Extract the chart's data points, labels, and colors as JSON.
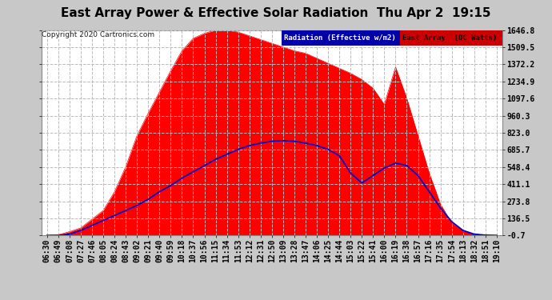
{
  "title": "East Array Power & Effective Solar Radiation  Thu Apr 2  19:15",
  "copyright": "Copyright 2020 Cartronics.com",
  "legend_radiation": "Radiation (Effective w/m2)",
  "legend_array": "East Array  (DC Watts)",
  "background_color": "#c8c8c8",
  "plot_bg_color": "#ffffff",
  "ylim": [
    -0.7,
    1646.8
  ],
  "yticks": [
    -0.7,
    136.5,
    273.8,
    411.1,
    548.4,
    685.7,
    823.0,
    960.3,
    1097.6,
    1234.9,
    1372.2,
    1509.5,
    1646.8
  ],
  "xtick_labels": [
    "06:30",
    "06:49",
    "07:08",
    "07:27",
    "07:46",
    "08:05",
    "08:24",
    "08:43",
    "09:02",
    "09:21",
    "09:40",
    "09:59",
    "10:18",
    "10:37",
    "10:56",
    "11:15",
    "11:34",
    "11:53",
    "12:12",
    "12:31",
    "12:50",
    "13:09",
    "13:28",
    "13:47",
    "14:06",
    "14:25",
    "14:44",
    "15:03",
    "15:22",
    "15:41",
    "16:00",
    "16:19",
    "16:38",
    "16:57",
    "17:16",
    "17:35",
    "17:54",
    "18:13",
    "18:32",
    "18:51",
    "19:10"
  ],
  "fill_color": "#ff0000",
  "line_color": "#0000cd",
  "title_color": "#000000",
  "title_fontsize": 11,
  "tick_fontsize": 7,
  "red_vals": [
    0,
    5,
    30,
    60,
    130,
    200,
    350,
    550,
    800,
    980,
    1150,
    1320,
    1480,
    1580,
    1620,
    1646,
    1646,
    1630,
    1600,
    1570,
    1540,
    1510,
    1480,
    1460,
    1420,
    1380,
    1340,
    1300,
    1250,
    1180,
    1050,
    1350,
    1100,
    800,
    500,
    250,
    100,
    40,
    10,
    2,
    0
  ],
  "blue_vals": [
    0,
    0,
    10,
    40,
    80,
    120,
    160,
    200,
    240,
    290,
    350,
    400,
    460,
    510,
    560,
    610,
    650,
    690,
    720,
    740,
    755,
    760,
    755,
    740,
    720,
    690,
    640,
    500,
    420,
    480,
    540,
    580,
    560,
    480,
    350,
    220,
    110,
    40,
    10,
    2,
    0
  ]
}
